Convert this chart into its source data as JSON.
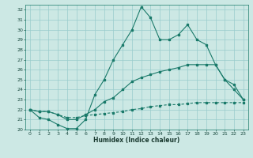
{
  "title": "",
  "xlabel": "Humidex (Indice chaleur)",
  "bg_color": "#cce8e4",
  "grid_color": "#99cccc",
  "line_color": "#1a7a6a",
  "xlim": [
    -0.5,
    23.5
  ],
  "ylim": [
    20,
    32.5
  ],
  "yticks": [
    20,
    21,
    22,
    23,
    24,
    25,
    26,
    27,
    28,
    29,
    30,
    31,
    32
  ],
  "xticks": [
    0,
    1,
    2,
    3,
    4,
    5,
    6,
    7,
    8,
    9,
    10,
    11,
    12,
    13,
    14,
    15,
    16,
    17,
    18,
    19,
    20,
    21,
    22,
    23
  ],
  "line1_x": [
    0,
    1,
    2,
    3,
    4,
    5,
    6,
    7,
    8,
    9,
    10,
    11,
    12,
    13,
    14,
    15,
    16,
    17,
    18,
    19,
    20,
    21,
    22,
    23
  ],
  "line1_y": [
    22.0,
    21.2,
    21.0,
    20.5,
    20.1,
    20.1,
    21.0,
    23.5,
    25.0,
    27.0,
    28.5,
    30.0,
    32.3,
    31.2,
    29.0,
    29.0,
    29.5,
    30.5,
    29.0,
    28.5,
    26.5,
    25.0,
    24.0,
    23.0
  ],
  "line2_x": [
    0,
    1,
    2,
    3,
    4,
    5,
    6,
    7,
    8,
    9,
    10,
    11,
    12,
    13,
    14,
    15,
    16,
    17,
    18,
    19,
    20,
    21,
    22,
    23
  ],
  "line2_y": [
    22.0,
    21.8,
    21.8,
    21.5,
    21.0,
    21.0,
    21.5,
    22.0,
    22.8,
    23.2,
    24.0,
    24.8,
    25.2,
    25.5,
    25.8,
    26.0,
    26.2,
    26.5,
    26.5,
    26.5,
    26.5,
    25.0,
    24.5,
    23.0
  ],
  "line3_x": [
    0,
    1,
    2,
    3,
    4,
    5,
    6,
    7,
    8,
    9,
    10,
    11,
    12,
    13,
    14,
    15,
    16,
    17,
    18,
    19,
    20,
    21,
    22,
    23
  ],
  "line3_y": [
    22.0,
    21.8,
    21.8,
    21.5,
    21.2,
    21.2,
    21.4,
    21.5,
    21.6,
    21.7,
    21.8,
    22.0,
    22.1,
    22.3,
    22.4,
    22.5,
    22.5,
    22.6,
    22.7,
    22.7,
    22.7,
    22.7,
    22.7,
    22.7
  ]
}
